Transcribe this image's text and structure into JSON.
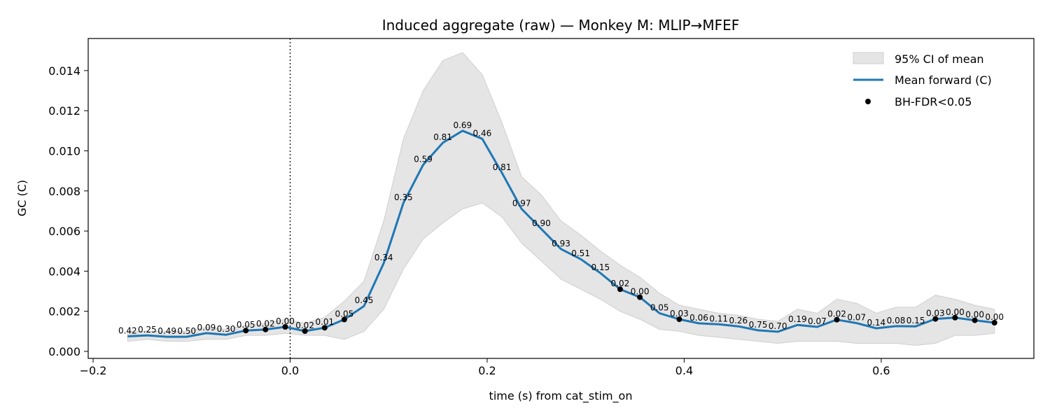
{
  "chart_data": {
    "type": "line",
    "title": "Induced aggregate (raw) — Monkey M: MLIP→MFEF",
    "xlabel": "time (s) from cat_stim_on",
    "ylabel": "GC (C)",
    "xlim": [
      -0.205,
      0.755
    ],
    "ylim": [
      -0.00035,
      0.0156
    ],
    "xticks": [
      -0.2,
      0.0,
      0.2,
      0.4,
      0.6
    ],
    "xtick_labels": [
      "−0.2",
      "0.0",
      "0.2",
      "0.4",
      "0.6"
    ],
    "yticks": [
      0.0,
      0.002,
      0.004,
      0.006,
      0.008,
      0.01,
      0.012,
      0.014
    ],
    "ytick_labels": [
      "0.000",
      "0.002",
      "0.004",
      "0.006",
      "0.008",
      "0.010",
      "0.012",
      "0.014"
    ],
    "vline_x": 0.0,
    "grid": false,
    "legend_position": "top-right",
    "legend": {
      "ci_label": "95% CI of mean",
      "mean_label": "Mean forward (C)",
      "sig_label": "BH-FDR<0.05"
    },
    "colors": {
      "mean": "#1f77b4",
      "ci": "#e5e5e5",
      "ci_edge": "#cfcfcf",
      "sig": "#000000"
    },
    "x": [
      -0.165,
      -0.145,
      -0.125,
      -0.105,
      -0.085,
      -0.065,
      -0.045,
      -0.025,
      -0.005,
      0.015,
      0.035,
      0.055,
      0.075,
      0.095,
      0.115,
      0.135,
      0.155,
      0.175,
      0.195,
      0.215,
      0.235,
      0.255,
      0.275,
      0.295,
      0.315,
      0.335,
      0.355,
      0.375,
      0.395,
      0.415,
      0.435,
      0.455,
      0.475,
      0.495,
      0.515,
      0.535,
      0.555,
      0.575,
      0.595,
      0.615,
      0.635,
      0.655,
      0.675,
      0.695,
      0.715
    ],
    "series": [
      {
        "name": "Mean forward (C)",
        "values": [
          0.00075,
          0.0008,
          0.00073,
          0.00073,
          0.00091,
          0.00083,
          0.00104,
          0.00109,
          0.00122,
          0.00101,
          0.00118,
          0.00159,
          0.00226,
          0.0044,
          0.0074,
          0.0093,
          0.0104,
          0.011,
          0.0106,
          0.0089,
          0.0071,
          0.0061,
          0.0051,
          0.0046,
          0.0039,
          0.0031,
          0.0027,
          0.0019,
          0.0016,
          0.0014,
          0.00135,
          0.00125,
          0.00105,
          0.00098,
          0.00132,
          0.00122,
          0.00158,
          0.00141,
          0.00115,
          0.00126,
          0.00125,
          0.00162,
          0.00168,
          0.00155,
          0.00143
        ]
      }
    ],
    "ci_upper": [
      0.001,
      0.001,
      0.001,
      0.001,
      0.0012,
      0.0011,
      0.0013,
      0.0014,
      0.0016,
      0.0014,
      0.0017,
      0.0025,
      0.0035,
      0.0065,
      0.0106,
      0.013,
      0.0145,
      0.0149,
      0.0138,
      0.0114,
      0.0087,
      0.0078,
      0.0065,
      0.0058,
      0.005,
      0.0043,
      0.0037,
      0.0029,
      0.0023,
      0.0021,
      0.0019,
      0.0018,
      0.0016,
      0.0015,
      0.0021,
      0.0019,
      0.0026,
      0.0024,
      0.0019,
      0.0022,
      0.0022,
      0.0028,
      0.0026,
      0.0023,
      0.0021
    ],
    "ci_lower": [
      0.0005,
      0.0006,
      0.0005,
      0.0005,
      0.0006,
      0.0006,
      0.0008,
      0.0008,
      0.0009,
      0.0008,
      0.0008,
      0.0006,
      0.001,
      0.0021,
      0.0041,
      0.0056,
      0.0064,
      0.0071,
      0.0074,
      0.0067,
      0.0054,
      0.0045,
      0.0036,
      0.0031,
      0.0026,
      0.002,
      0.0016,
      0.0011,
      0.001,
      0.0008,
      0.0007,
      0.0006,
      0.0005,
      0.0004,
      0.0005,
      0.0005,
      0.0005,
      0.0004,
      0.0004,
      0.0004,
      0.0003,
      0.0004,
      0.0008,
      0.0008,
      0.0009
    ],
    "significant": [
      false,
      false,
      false,
      false,
      false,
      false,
      true,
      true,
      true,
      true,
      true,
      true,
      false,
      false,
      false,
      false,
      false,
      false,
      false,
      false,
      false,
      false,
      false,
      false,
      false,
      true,
      true,
      false,
      true,
      false,
      false,
      false,
      false,
      false,
      false,
      false,
      true,
      false,
      false,
      false,
      false,
      true,
      true,
      true,
      true
    ],
    "p_labels": [
      "0.42",
      "0.25",
      "0.49",
      "0.50",
      "0.09",
      "0.30",
      "0.05",
      "0.02",
      "0.00",
      "0.02",
      "0.01",
      "0.05",
      "0.45",
      "0.34",
      "0.35",
      "0.59",
      "0.81",
      "0.69",
      "0.46",
      "0.81",
      "0.97",
      "0.90",
      "0.93",
      "0.51",
      "0.15",
      "0.02",
      "0.00",
      "0.05",
      "0.03",
      "0.06",
      "0.11",
      "0.26",
      "0.75",
      "0.70",
      "0.19",
      "0.07",
      "0.02",
      "0.07",
      "0.14",
      "0.08",
      "0.15",
      "0.03",
      "0.00",
      "0.00",
      "0.00"
    ]
  }
}
